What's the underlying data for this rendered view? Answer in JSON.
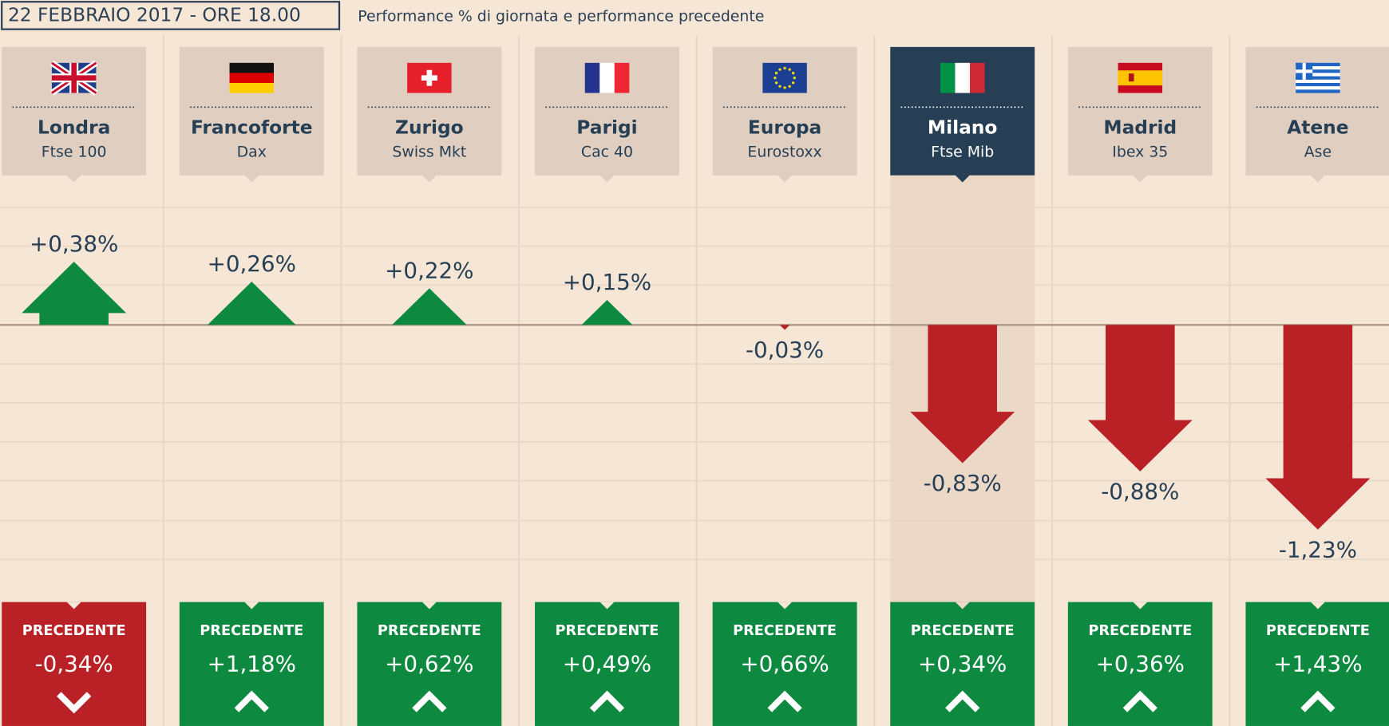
{
  "chart_data": {
    "type": "arrow",
    "title": "22 FEBBRAIO 2017 - ORE 18.00",
    "subtitle": "Performance % di giornata e performance precedente",
    "categories": [
      "Londra",
      "Francoforte",
      "Zurigo",
      "Parigi",
      "Europa",
      "Milano",
      "Madrid",
      "Atene"
    ],
    "indices": [
      "Ftse 100",
      "Dax",
      "Swiss Mkt",
      "Cac 40",
      "Eurostoxx",
      "Ftse Mib",
      "Ibex 35",
      "Ase"
    ],
    "highlight": "Milano",
    "values": [
      0.38,
      0.26,
      0.22,
      0.15,
      -0.03,
      -0.83,
      -0.88,
      -1.23
    ],
    "value_labels": [
      "+0,38%",
      "+0,26%",
      "+0,22%",
      "+0,15%",
      "-0,03%",
      "-0,83%",
      "-0,88%",
      "-1,23%"
    ],
    "previous_label": "PRECEDENTE",
    "previous": {
      "values": [
        -0.34,
        1.18,
        0.62,
        0.49,
        0.66,
        0.34,
        0.36,
        1.43
      ],
      "value_labels": [
        "-0,34%",
        "+1,18%",
        "+0,62%",
        "+0,49%",
        "+0,66%",
        "+0,34%",
        "+0,36%",
        "+1,43%"
      ]
    },
    "up_color": "#0e8a40",
    "down_color": "#b92126"
  }
}
